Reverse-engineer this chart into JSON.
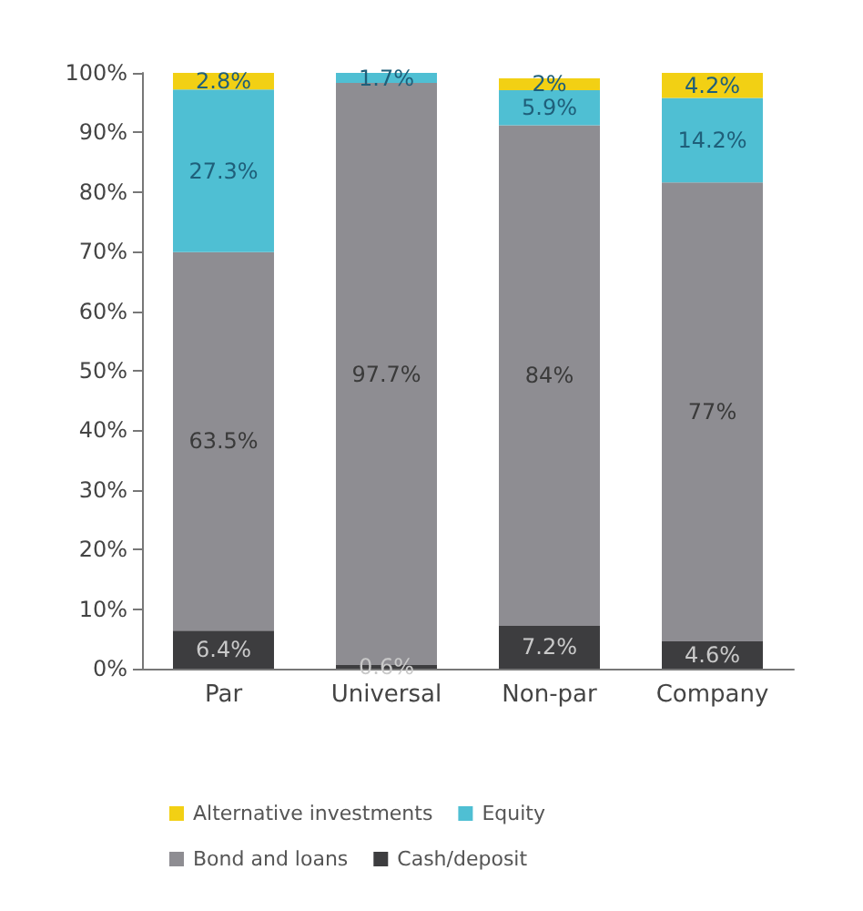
{
  "chart_data": {
    "type": "bar",
    "stacked": true,
    "categories": [
      "Par",
      "Universal",
      "Non-par",
      "Company"
    ],
    "series": [
      {
        "name": "Cash/deposit",
        "color": "#3d3d3f",
        "values": [
          6.4,
          0.6,
          7.2,
          4.6
        ],
        "value_labels": [
          "6.4%",
          "0.6%",
          "7.2%",
          "4.6%"
        ]
      },
      {
        "name": "Bond and loans",
        "color": "#8e8d92",
        "values": [
          63.5,
          97.7,
          84,
          77
        ],
        "value_labels": [
          "63.5%",
          "97.7%",
          "84%",
          "77%"
        ]
      },
      {
        "name": "Equity",
        "color": "#4fbfd3",
        "values": [
          27.3,
          1.7,
          5.9,
          14.2
        ],
        "value_labels": [
          "27.3%",
          "1.7%",
          "5.9%",
          "14.2%"
        ]
      },
      {
        "name": "Alternative investments",
        "color": "#f2d014",
        "values": [
          2.8,
          null,
          2,
          4.2
        ],
        "value_labels": [
          "2.8%",
          null,
          "2%",
          "4.2%"
        ]
      }
    ],
    "ylim": [
      0,
      100
    ],
    "yticks": [
      {
        "value": 0,
        "label": "0%"
      },
      {
        "value": 10,
        "label": "10%"
      },
      {
        "value": 20,
        "label": "20%"
      },
      {
        "value": 30,
        "label": "30%"
      },
      {
        "value": 40,
        "label": "40%"
      },
      {
        "value": 50,
        "label": "50%"
      },
      {
        "value": 60,
        "label": "60%"
      },
      {
        "value": 70,
        "label": "70%"
      },
      {
        "value": 80,
        "label": "80%"
      },
      {
        "value": 90,
        "label": "90%"
      },
      {
        "value": 100,
        "label": "100%"
      }
    ],
    "grid": false,
    "legend": "bottom"
  }
}
